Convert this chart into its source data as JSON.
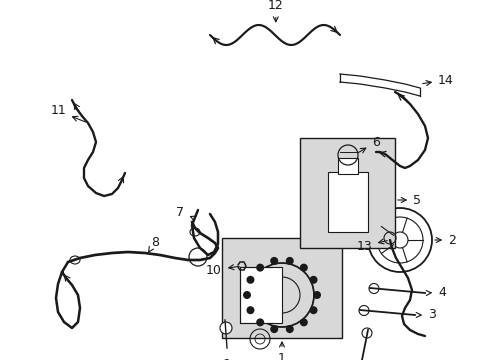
{
  "bg_color": "#ffffff",
  "line_color": "#1a1a1a",
  "box_fill": "#e0e0e0",
  "figsize": [
    4.89,
    3.6
  ],
  "dpi": 100,
  "xlim": [
    0,
    489
  ],
  "ylim": [
    0,
    360
  ]
}
